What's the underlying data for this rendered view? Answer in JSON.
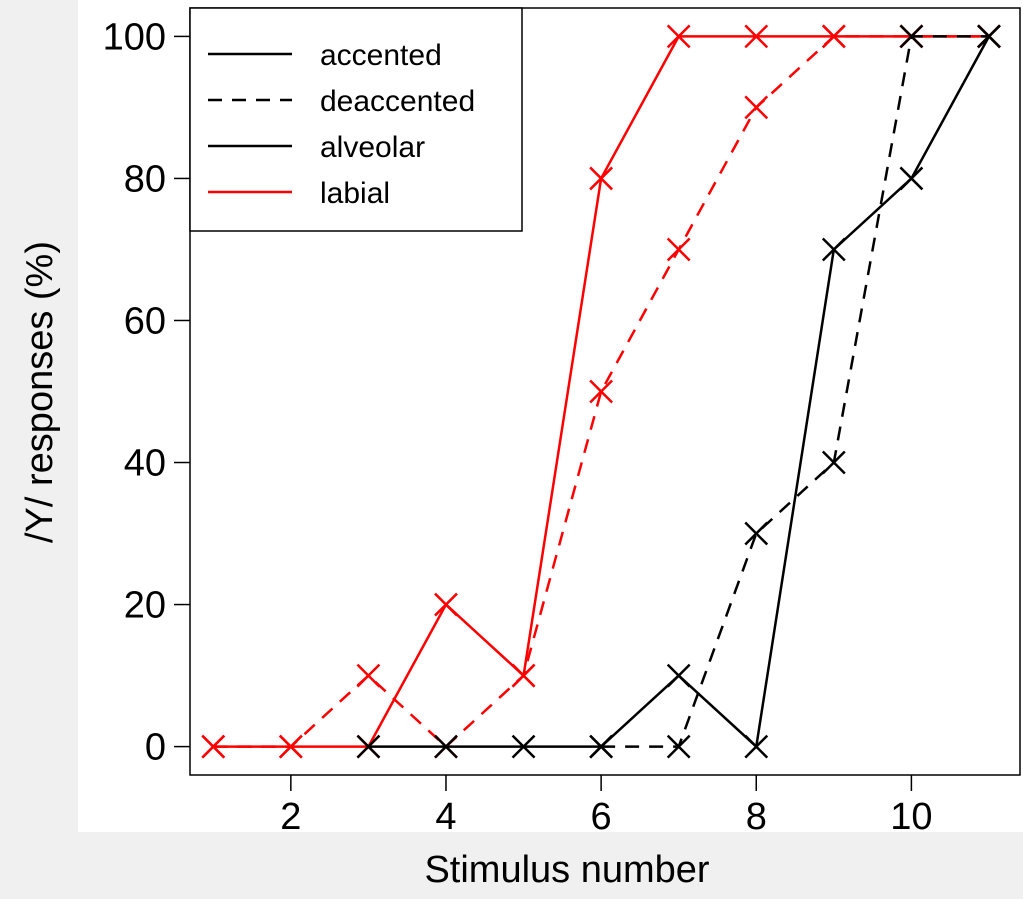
{
  "chart_data": {
    "type": "line",
    "xlabel": "Stimulus number",
    "ylabel": "/Y/ responses (%)",
    "xlim": [
      0.7,
      11.4
    ],
    "ylim": [
      -4,
      104
    ],
    "x_ticks": [
      2,
      4,
      6,
      8,
      10
    ],
    "y_ticks": [
      0,
      20,
      40,
      60,
      80,
      100
    ],
    "grid": false,
    "legend_position": "top-left",
    "legend": [
      {
        "label": "accented",
        "color": "#000000",
        "dash": "solid"
      },
      {
        "label": "deaccented",
        "color": "#000000",
        "dash": "dashed"
      },
      {
        "label": "alveolar",
        "color": "#000000",
        "dash": "solid"
      },
      {
        "label": "labial",
        "color": "#ff0000",
        "dash": "solid"
      }
    ],
    "series": [
      {
        "place": "labial",
        "accent": "accented",
        "color": "#ff0000",
        "dash": "solid",
        "x": [
          1,
          2,
          3,
          4,
          5,
          6,
          7,
          8,
          9,
          10,
          11
        ],
        "y": [
          0,
          0,
          0,
          20,
          10,
          80,
          100,
          100,
          100,
          100,
          100
        ]
      },
      {
        "place": "labial",
        "accent": "deaccented",
        "color": "#ff0000",
        "dash": "dashed",
        "x": [
          1,
          2,
          3,
          4,
          5,
          6,
          7,
          8,
          9,
          10,
          11
        ],
        "y": [
          0,
          0,
          10,
          0,
          10,
          50,
          70,
          90,
          100,
          100,
          100
        ]
      },
      {
        "place": "alveolar",
        "accent": "accented",
        "color": "#000000",
        "dash": "solid",
        "x": [
          3,
          4,
          5,
          6,
          7,
          8,
          9,
          10,
          11
        ],
        "y": [
          0,
          0,
          0,
          0,
          10,
          0,
          70,
          80,
          100
        ]
      },
      {
        "place": "alveolar",
        "accent": "deaccented",
        "color": "#000000",
        "dash": "dashed",
        "x": [
          6,
          7,
          8,
          9,
          10,
          11
        ],
        "y": [
          0,
          0,
          30,
          40,
          100,
          100
        ]
      }
    ]
  }
}
